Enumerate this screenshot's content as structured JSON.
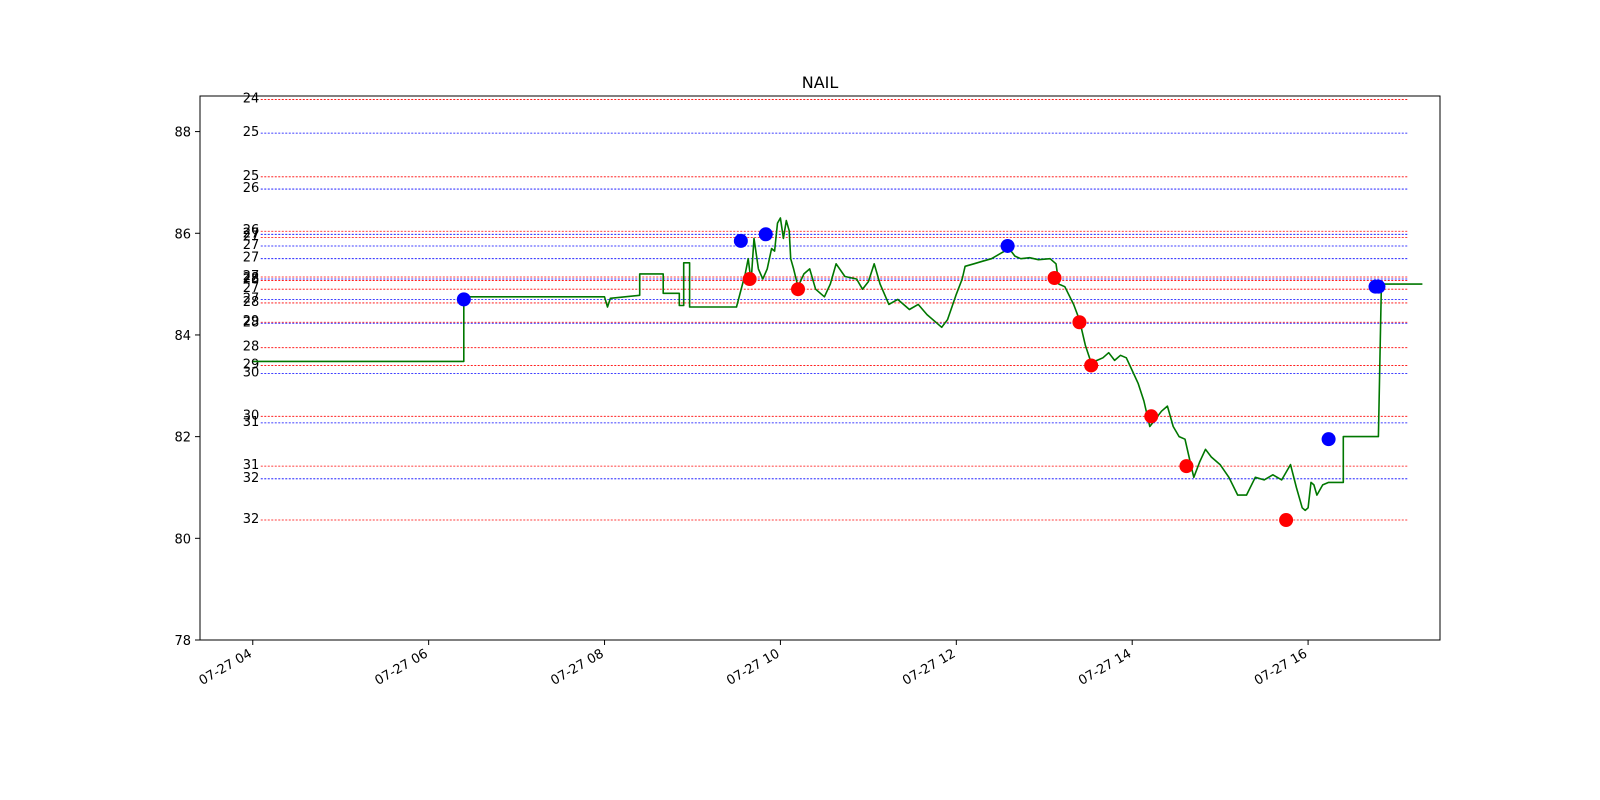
{
  "chart_data": {
    "type": "line",
    "title": "NAIL",
    "xlabel": "",
    "ylabel": "",
    "x_range": [
      "07-27 03:24",
      "07-27 17:30"
    ],
    "ylim": [
      78,
      88.7
    ],
    "x_ticks": [
      {
        "time": "07-27 04:00",
        "label": "07-27 04"
      },
      {
        "time": "07-27 06:00",
        "label": "07-27 06"
      },
      {
        "time": "07-27 08:00",
        "label": "07-27 08"
      },
      {
        "time": "07-27 10:00",
        "label": "07-27 10"
      },
      {
        "time": "07-27 12:00",
        "label": "07-27 12"
      },
      {
        "time": "07-27 14:00",
        "label": "07-27 14"
      },
      {
        "time": "07-27 16:00",
        "label": "07-27 16"
      }
    ],
    "y_ticks": [
      78,
      80,
      82,
      84,
      86,
      88
    ],
    "grid": false,
    "colors": {
      "price": "#007700",
      "buy": "#0000ff",
      "sell": "#ff0000"
    },
    "series": [
      {
        "color": "#007700",
        "points": [
          [
            "07-27 04:00",
            83.48
          ],
          [
            "07-27 06:24",
            83.48
          ],
          [
            "07-27 06:24",
            84.75
          ],
          [
            "07-27 08:00",
            84.75
          ],
          [
            "07-27 08:02",
            84.55
          ],
          [
            "07-27 08:04",
            84.72
          ],
          [
            "07-27 08:24",
            84.78
          ],
          [
            "07-27 08:24",
            85.2
          ],
          [
            "07-27 08:40",
            85.2
          ],
          [
            "07-27 08:40",
            84.82
          ],
          [
            "07-27 08:51",
            84.82
          ],
          [
            "07-27 08:51",
            84.58
          ],
          [
            "07-27 08:54",
            84.58
          ],
          [
            "07-27 08:54",
            85.42
          ],
          [
            "07-27 08:58",
            85.42
          ],
          [
            "07-27 08:58",
            84.55
          ],
          [
            "07-27 09:30",
            84.55
          ],
          [
            "07-27 09:36",
            85.2
          ],
          [
            "07-27 09:38",
            85.5
          ],
          [
            "07-27 09:40",
            85.05
          ],
          [
            "07-27 09:42",
            85.9
          ],
          [
            "07-27 09:45",
            85.3
          ],
          [
            "07-27 09:48",
            85.1
          ],
          [
            "07-27 09:51",
            85.3
          ],
          [
            "07-27 09:54",
            85.7
          ],
          [
            "07-27 09:56",
            85.65
          ],
          [
            "07-27 09:58",
            86.2
          ],
          [
            "07-27 10:00",
            86.3
          ],
          [
            "07-27 10:02",
            85.9
          ],
          [
            "07-27 10:04",
            86.25
          ],
          [
            "07-27 10:06",
            86.05
          ],
          [
            "07-27 10:07",
            85.5
          ],
          [
            "07-27 10:09",
            85.3
          ],
          [
            "07-27 10:12",
            84.95
          ],
          [
            "07-27 10:16",
            85.2
          ],
          [
            "07-27 10:20",
            85.3
          ],
          [
            "07-27 10:24",
            84.9
          ],
          [
            "07-27 10:30",
            84.75
          ],
          [
            "07-27 10:34",
            85.0
          ],
          [
            "07-27 10:38",
            85.4
          ],
          [
            "07-27 10:44",
            85.15
          ],
          [
            "07-27 10:52",
            85.1
          ],
          [
            "07-27 10:56",
            84.9
          ],
          [
            "07-27 11:00",
            85.05
          ],
          [
            "07-27 11:04",
            85.4
          ],
          [
            "07-27 11:08",
            85.0
          ],
          [
            "07-27 11:14",
            84.6
          ],
          [
            "07-27 11:20",
            84.7
          ],
          [
            "07-27 11:28",
            84.5
          ],
          [
            "07-27 11:34",
            84.6
          ],
          [
            "07-27 11:40",
            84.4
          ],
          [
            "07-27 11:46",
            84.25
          ],
          [
            "07-27 11:50",
            84.15
          ],
          [
            "07-27 11:54",
            84.3
          ],
          [
            "07-27 12:00",
            84.8
          ],
          [
            "07-27 12:04",
            85.1
          ],
          [
            "07-27 12:06",
            85.35
          ],
          [
            "07-27 12:12",
            85.4
          ],
          [
            "07-27 12:18",
            85.45
          ],
          [
            "07-27 12:24",
            85.5
          ],
          [
            "07-27 12:30",
            85.6
          ],
          [
            "07-27 12:36",
            85.7
          ],
          [
            "07-27 12:40",
            85.55
          ],
          [
            "07-27 12:44",
            85.5
          ],
          [
            "07-27 12:50",
            85.52
          ],
          [
            "07-27 12:56",
            85.48
          ],
          [
            "07-27 13:04",
            85.5
          ],
          [
            "07-27 13:08",
            85.4
          ],
          [
            "07-27 13:10",
            85.0
          ],
          [
            "07-27 13:14",
            84.95
          ],
          [
            "07-27 13:20",
            84.6
          ],
          [
            "07-27 13:24",
            84.3
          ],
          [
            "07-27 13:28",
            83.8
          ],
          [
            "07-27 13:32",
            83.45
          ],
          [
            "07-27 13:36",
            83.5
          ],
          [
            "07-27 13:40",
            83.55
          ],
          [
            "07-27 13:44",
            83.65
          ],
          [
            "07-27 13:48",
            83.5
          ],
          [
            "07-27 13:52",
            83.6
          ],
          [
            "07-27 13:56",
            83.55
          ],
          [
            "07-27 14:00",
            83.3
          ],
          [
            "07-27 14:04",
            83.05
          ],
          [
            "07-27 14:08",
            82.7
          ],
          [
            "07-27 14:12",
            82.2
          ],
          [
            "07-27 14:16",
            82.35
          ],
          [
            "07-27 14:20",
            82.5
          ],
          [
            "07-27 14:24",
            82.6
          ],
          [
            "07-27 14:28",
            82.2
          ],
          [
            "07-27 14:32",
            82.0
          ],
          [
            "07-27 14:36",
            81.95
          ],
          [
            "07-27 14:40",
            81.45
          ],
          [
            "07-27 14:42",
            81.2
          ],
          [
            "07-27 14:46",
            81.5
          ],
          [
            "07-27 14:50",
            81.75
          ],
          [
            "07-27 14:54",
            81.6
          ],
          [
            "07-27 15:00",
            81.45
          ],
          [
            "07-27 15:06",
            81.2
          ],
          [
            "07-27 15:12",
            80.85
          ],
          [
            "07-27 15:18",
            80.85
          ],
          [
            "07-27 15:24",
            81.2
          ],
          [
            "07-27 15:30",
            81.15
          ],
          [
            "07-27 15:36",
            81.25
          ],
          [
            "07-27 15:42",
            81.15
          ],
          [
            "07-27 15:48",
            81.45
          ],
          [
            "07-27 15:52",
            81.0
          ],
          [
            "07-27 15:56",
            80.6
          ],
          [
            "07-27 15:58",
            80.55
          ],
          [
            "07-27 16:00",
            80.6
          ],
          [
            "07-27 16:02",
            81.1
          ],
          [
            "07-27 16:04",
            81.05
          ],
          [
            "07-27 16:06",
            80.85
          ],
          [
            "07-27 16:10",
            81.05
          ],
          [
            "07-27 16:14",
            81.1
          ],
          [
            "07-27 16:24",
            81.1
          ],
          [
            "07-27 16:24",
            82.0
          ],
          [
            "07-27 16:48",
            82.0
          ],
          [
            "07-27 16:50",
            85.0
          ],
          [
            "07-27 17:18",
            85.0
          ]
        ]
      }
    ],
    "buy_points": [
      [
        "07-27 06:24",
        84.7
      ],
      [
        "07-27 09:33",
        85.85
      ],
      [
        "07-27 09:50",
        85.98
      ],
      [
        "07-27 12:35",
        85.75
      ],
      [
        "07-27 16:14",
        81.95
      ],
      [
        "07-27 16:46",
        84.95
      ],
      [
        "07-27 16:48",
        84.95
      ]
    ],
    "sell_points": [
      [
        "07-27 09:39",
        85.1
      ],
      [
        "07-27 10:12",
        84.9
      ],
      [
        "07-27 13:07",
        85.12
      ],
      [
        "07-27 13:24",
        84.25
      ],
      [
        "07-27 13:32",
        83.4
      ],
      [
        "07-27 14:13",
        82.4
      ],
      [
        "07-27 14:37",
        81.42
      ],
      [
        "07-27 15:45",
        80.36
      ]
    ],
    "levels": [
      {
        "y": 88.63,
        "label": "24",
        "color": "#ff0000"
      },
      {
        "y": 87.97,
        "label": "25",
        "color": "#0000ff"
      },
      {
        "y": 87.11,
        "label": "25",
        "color": "#ff0000"
      },
      {
        "y": 86.87,
        "label": "26",
        "color": "#0000ff"
      },
      {
        "y": 86.04,
        "label": "26",
        "color": "#ff0000"
      },
      {
        "y": 85.98,
        "label": "27",
        "color": "#0000ff"
      },
      {
        "y": 85.92,
        "label": "27",
        "color": "#ff0000"
      },
      {
        "y": 85.75,
        "label": "27",
        "color": "#0000ff"
      },
      {
        "y": 85.5,
        "label": "27",
        "color": "#0000ff"
      },
      {
        "y": 85.14,
        "label": "27",
        "color": "#ff0000"
      },
      {
        "y": 85.1,
        "label": "28",
        "color": "#0000ff"
      },
      {
        "y": 85.07,
        "label": "28",
        "color": "#ff0000"
      },
      {
        "y": 84.9,
        "label": "27",
        "color": "#ff0000"
      },
      {
        "y": 84.7,
        "label": "27",
        "color": "#0000ff"
      },
      {
        "y": 84.63,
        "label": "28",
        "color": "#ff0000"
      },
      {
        "y": 84.25,
        "label": "29",
        "color": "#ff0000"
      },
      {
        "y": 84.23,
        "label": "28",
        "color": "#0000ff"
      },
      {
        "y": 83.75,
        "label": "28",
        "color": "#ff0000"
      },
      {
        "y": 83.4,
        "label": "29",
        "color": "#ff0000"
      },
      {
        "y": 83.24,
        "label": "30",
        "color": "#0000ff"
      },
      {
        "y": 82.4,
        "label": "30",
        "color": "#ff0000"
      },
      {
        "y": 82.27,
        "label": "31",
        "color": "#0000ff"
      },
      {
        "y": 81.42,
        "label": "31",
        "color": "#ff0000"
      },
      {
        "y": 81.17,
        "label": "32",
        "color": "#0000ff"
      },
      {
        "y": 80.36,
        "label": "32",
        "color": "#ff0000"
      }
    ]
  }
}
